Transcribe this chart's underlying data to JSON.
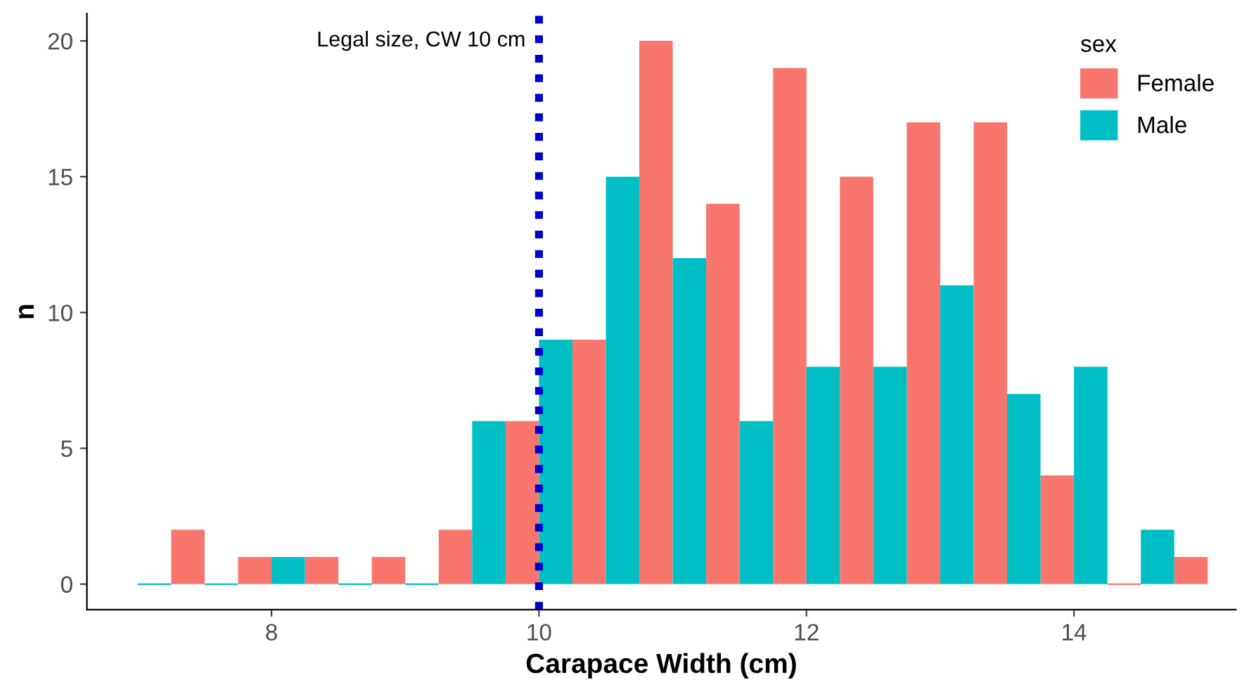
{
  "chart_data": {
    "type": "histogram",
    "xlabel": "Carapace Width (cm)",
    "ylabel": "n",
    "legend_title": "sex",
    "bins": [
      7.0,
      7.5,
      8.0,
      8.5,
      9.0,
      9.5,
      10.0,
      10.5,
      11.0,
      11.5,
      12.0,
      12.5,
      13.0,
      13.5,
      14.0,
      14.5,
      15.0
    ],
    "series": [
      {
        "name": "Female",
        "color": "#f8766d",
        "values": [
          2,
          1,
          1,
          1,
          2,
          6,
          9,
          20,
          14,
          19,
          15,
          17,
          17,
          4,
          0,
          1
        ]
      },
      {
        "name": "Male",
        "color": "#00bfc4",
        "values": [
          0,
          0,
          1,
          0,
          0,
          6,
          9,
          15,
          12,
          6,
          8,
          8,
          11,
          7,
          8,
          2
        ]
      }
    ],
    "xlim": [
      6.62,
      15.21
    ],
    "ylim": [
      -0.94,
      21.0
    ],
    "xticks": [
      8,
      10,
      12,
      14
    ],
    "yticks": [
      0,
      5,
      10,
      15,
      20
    ],
    "ref_lines": [
      {
        "axis": "x",
        "value": 10,
        "label": "Legal size, CW 10 cm",
        "color": "#0000cd",
        "line_style": "dotted"
      }
    ],
    "legend": "top right",
    "grid": false
  }
}
